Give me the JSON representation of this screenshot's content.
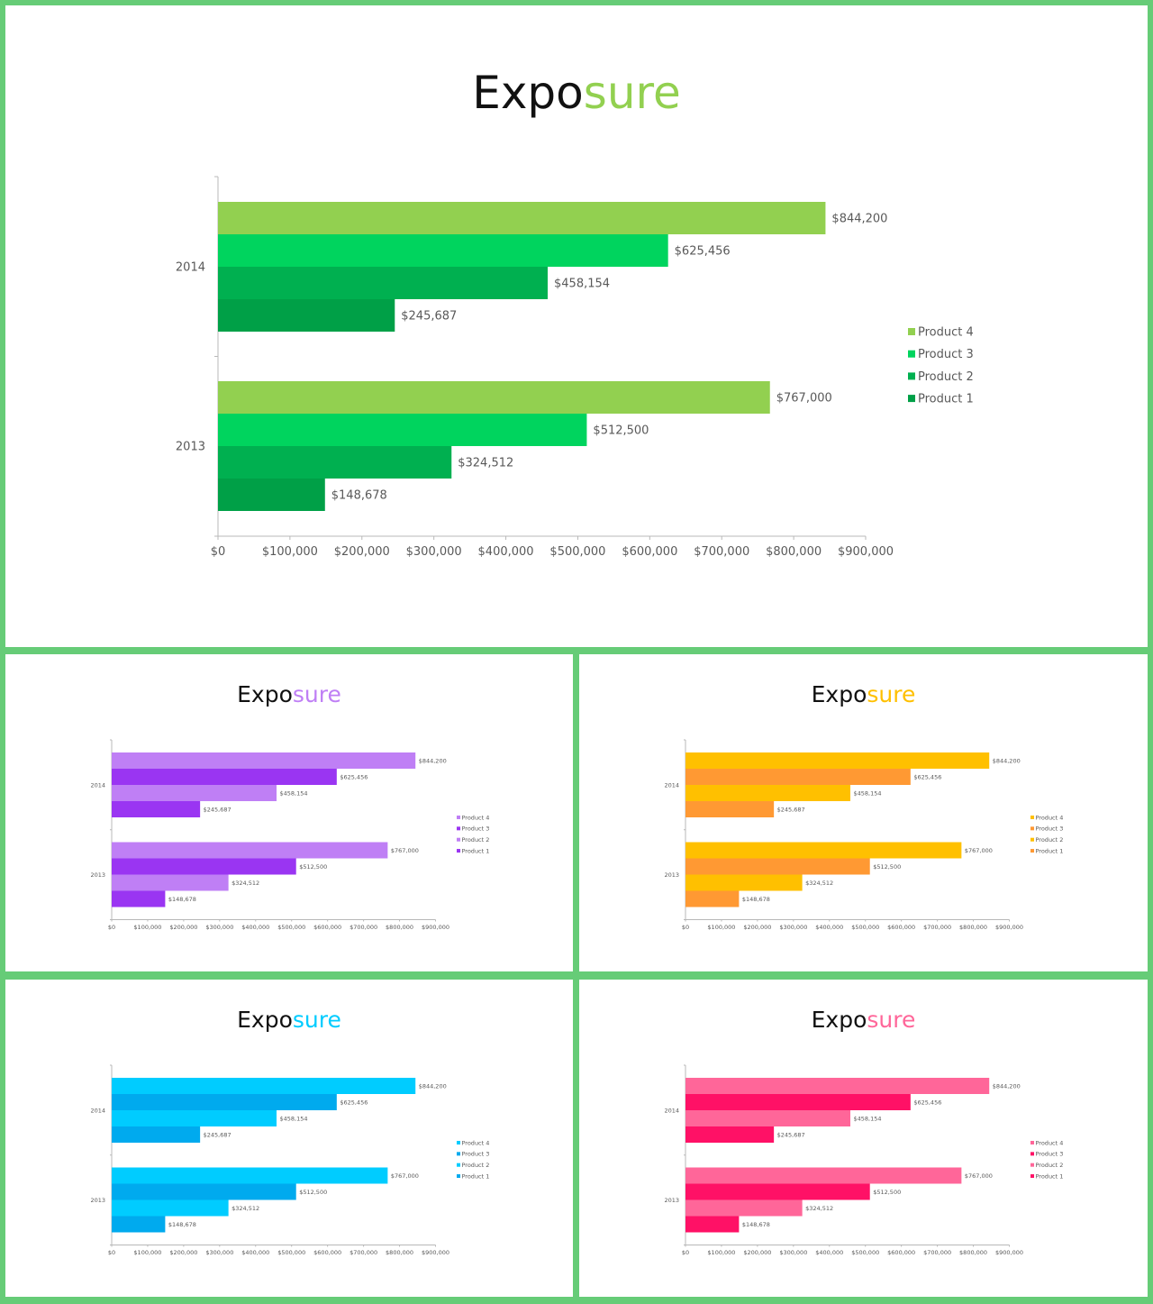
{
  "chart_data": [
    {
      "type": "bar",
      "orientation": "horizontal",
      "title": {
        "prefix": "Expo",
        "suffix": "sure"
      },
      "title_accent": "#92d050",
      "categories": [
        "2014",
        "2013"
      ],
      "series": [
        {
          "name": "Product 4",
          "color": "#92d050",
          "values": [
            844200,
            767000
          ]
        },
        {
          "name": "Product 3",
          "color": "#00d45e",
          "values": [
            625456,
            512500
          ]
        },
        {
          "name": "Product 2",
          "color": "#00b050",
          "values": [
            458154,
            324512
          ]
        },
        {
          "name": "Product 1",
          "color": "#00a047",
          "values": [
            245687,
            148678
          ]
        }
      ],
      "value_labels": [
        [
          "$844,200",
          "$625,456",
          "$458,154",
          "$245,687"
        ],
        [
          "$767,000",
          "$512,500",
          "$324,512",
          "$148,678"
        ]
      ],
      "xlim": [
        0,
        900000
      ],
      "x_ticks": [
        "$0",
        "$100,000",
        "$200,000",
        "$300,000",
        "$400,000",
        "$500,000",
        "$600,000",
        "$700,000",
        "$800,000",
        "$900,000"
      ],
      "legend_position": "right",
      "grid": false
    },
    {
      "type": "bar",
      "orientation": "horizontal",
      "title": {
        "prefix": "Expo",
        "suffix": "sure"
      },
      "title_accent": "#bf7ff5",
      "categories": [
        "2014",
        "2013"
      ],
      "series": [
        {
          "name": "Product 4",
          "color": "#bf7ff5",
          "values": [
            844200,
            767000
          ]
        },
        {
          "name": "Product 3",
          "color": "#9a35f2",
          "values": [
            625456,
            512500
          ]
        },
        {
          "name": "Product 2",
          "color": "#bf7ff5",
          "values": [
            458154,
            324512
          ]
        },
        {
          "name": "Product 1",
          "color": "#9a35f2",
          "values": [
            245687,
            148678
          ]
        }
      ],
      "value_labels": [
        [
          "$844,200",
          "$625,456",
          "$458,154",
          "$245,687"
        ],
        [
          "$767,000",
          "$512,500",
          "$324,512",
          "$148,678"
        ]
      ],
      "xlim": [
        0,
        900000
      ],
      "x_ticks": [
        "$0",
        "$100,000",
        "$200,000",
        "$300,000",
        "$400,000",
        "$500,000",
        "$600,000",
        "$700,000",
        "$800,000",
        "$900,000"
      ],
      "legend_position": "right",
      "grid": false
    },
    {
      "type": "bar",
      "orientation": "horizontal",
      "title": {
        "prefix": "Expo",
        "suffix": "sure"
      },
      "title_accent": "#ffc000",
      "categories": [
        "2014",
        "2013"
      ],
      "series": [
        {
          "name": "Product 4",
          "color": "#ffc000",
          "values": [
            844200,
            767000
          ]
        },
        {
          "name": "Product 3",
          "color": "#ff9933",
          "values": [
            625456,
            512500
          ]
        },
        {
          "name": "Product 2",
          "color": "#ffc000",
          "values": [
            458154,
            324512
          ]
        },
        {
          "name": "Product 1",
          "color": "#ff9933",
          "values": [
            245687,
            148678
          ]
        }
      ],
      "value_labels": [
        [
          "$844,200",
          "$625,456",
          "$458,154",
          "$245,687"
        ],
        [
          "$767,000",
          "$512,500",
          "$324,512",
          "$148,678"
        ]
      ],
      "xlim": [
        0,
        900000
      ],
      "x_ticks": [
        "$0",
        "$100,000",
        "$200,000",
        "$300,000",
        "$400,000",
        "$500,000",
        "$600,000",
        "$700,000",
        "$800,000",
        "$900,000"
      ],
      "legend_position": "right",
      "grid": false
    },
    {
      "type": "bar",
      "orientation": "horizontal",
      "title": {
        "prefix": "Expo",
        "suffix": "sure"
      },
      "title_accent": "#00ccff",
      "categories": [
        "2014",
        "2013"
      ],
      "series": [
        {
          "name": "Product 4",
          "color": "#00ccff",
          "values": [
            844200,
            767000
          ]
        },
        {
          "name": "Product 3",
          "color": "#00aaee",
          "values": [
            625456,
            512500
          ]
        },
        {
          "name": "Product 2",
          "color": "#00ccff",
          "values": [
            458154,
            324512
          ]
        },
        {
          "name": "Product 1",
          "color": "#00aaee",
          "values": [
            245687,
            148678
          ]
        }
      ],
      "value_labels": [
        [
          "$844,200",
          "$625,456",
          "$458,154",
          "$245,687"
        ],
        [
          "$767,000",
          "$512,500",
          "$324,512",
          "$148,678"
        ]
      ],
      "xlim": [
        0,
        900000
      ],
      "x_ticks": [
        "$0",
        "$100,000",
        "$200,000",
        "$300,000",
        "$400,000",
        "$500,000",
        "$600,000",
        "$700,000",
        "$800,000",
        "$900,000"
      ],
      "legend_position": "right",
      "grid": false
    },
    {
      "type": "bar",
      "orientation": "horizontal",
      "title": {
        "prefix": "Expo",
        "suffix": "sure"
      },
      "title_accent": "#ff6699",
      "categories": [
        "2014",
        "2013"
      ],
      "series": [
        {
          "name": "Product 4",
          "color": "#ff6699",
          "values": [
            844200,
            767000
          ]
        },
        {
          "name": "Product 3",
          "color": "#ff1166",
          "values": [
            625456,
            512500
          ]
        },
        {
          "name": "Product 2",
          "color": "#ff6699",
          "values": [
            458154,
            324512
          ]
        },
        {
          "name": "Product 1",
          "color": "#ff1166",
          "values": [
            245687,
            148678
          ]
        }
      ],
      "value_labels": [
        [
          "$844,200",
          "$625,456",
          "$458,154",
          "$245,687"
        ],
        [
          "$767,000",
          "$512,500",
          "$324,512",
          "$148,678"
        ]
      ],
      "xlim": [
        0,
        900000
      ],
      "x_ticks": [
        "$0",
        "$100,000",
        "$200,000",
        "$300,000",
        "$400,000",
        "$500,000",
        "$600,000",
        "$700,000",
        "$800,000",
        "$900,000"
      ],
      "legend_position": "right",
      "grid": false
    }
  ]
}
